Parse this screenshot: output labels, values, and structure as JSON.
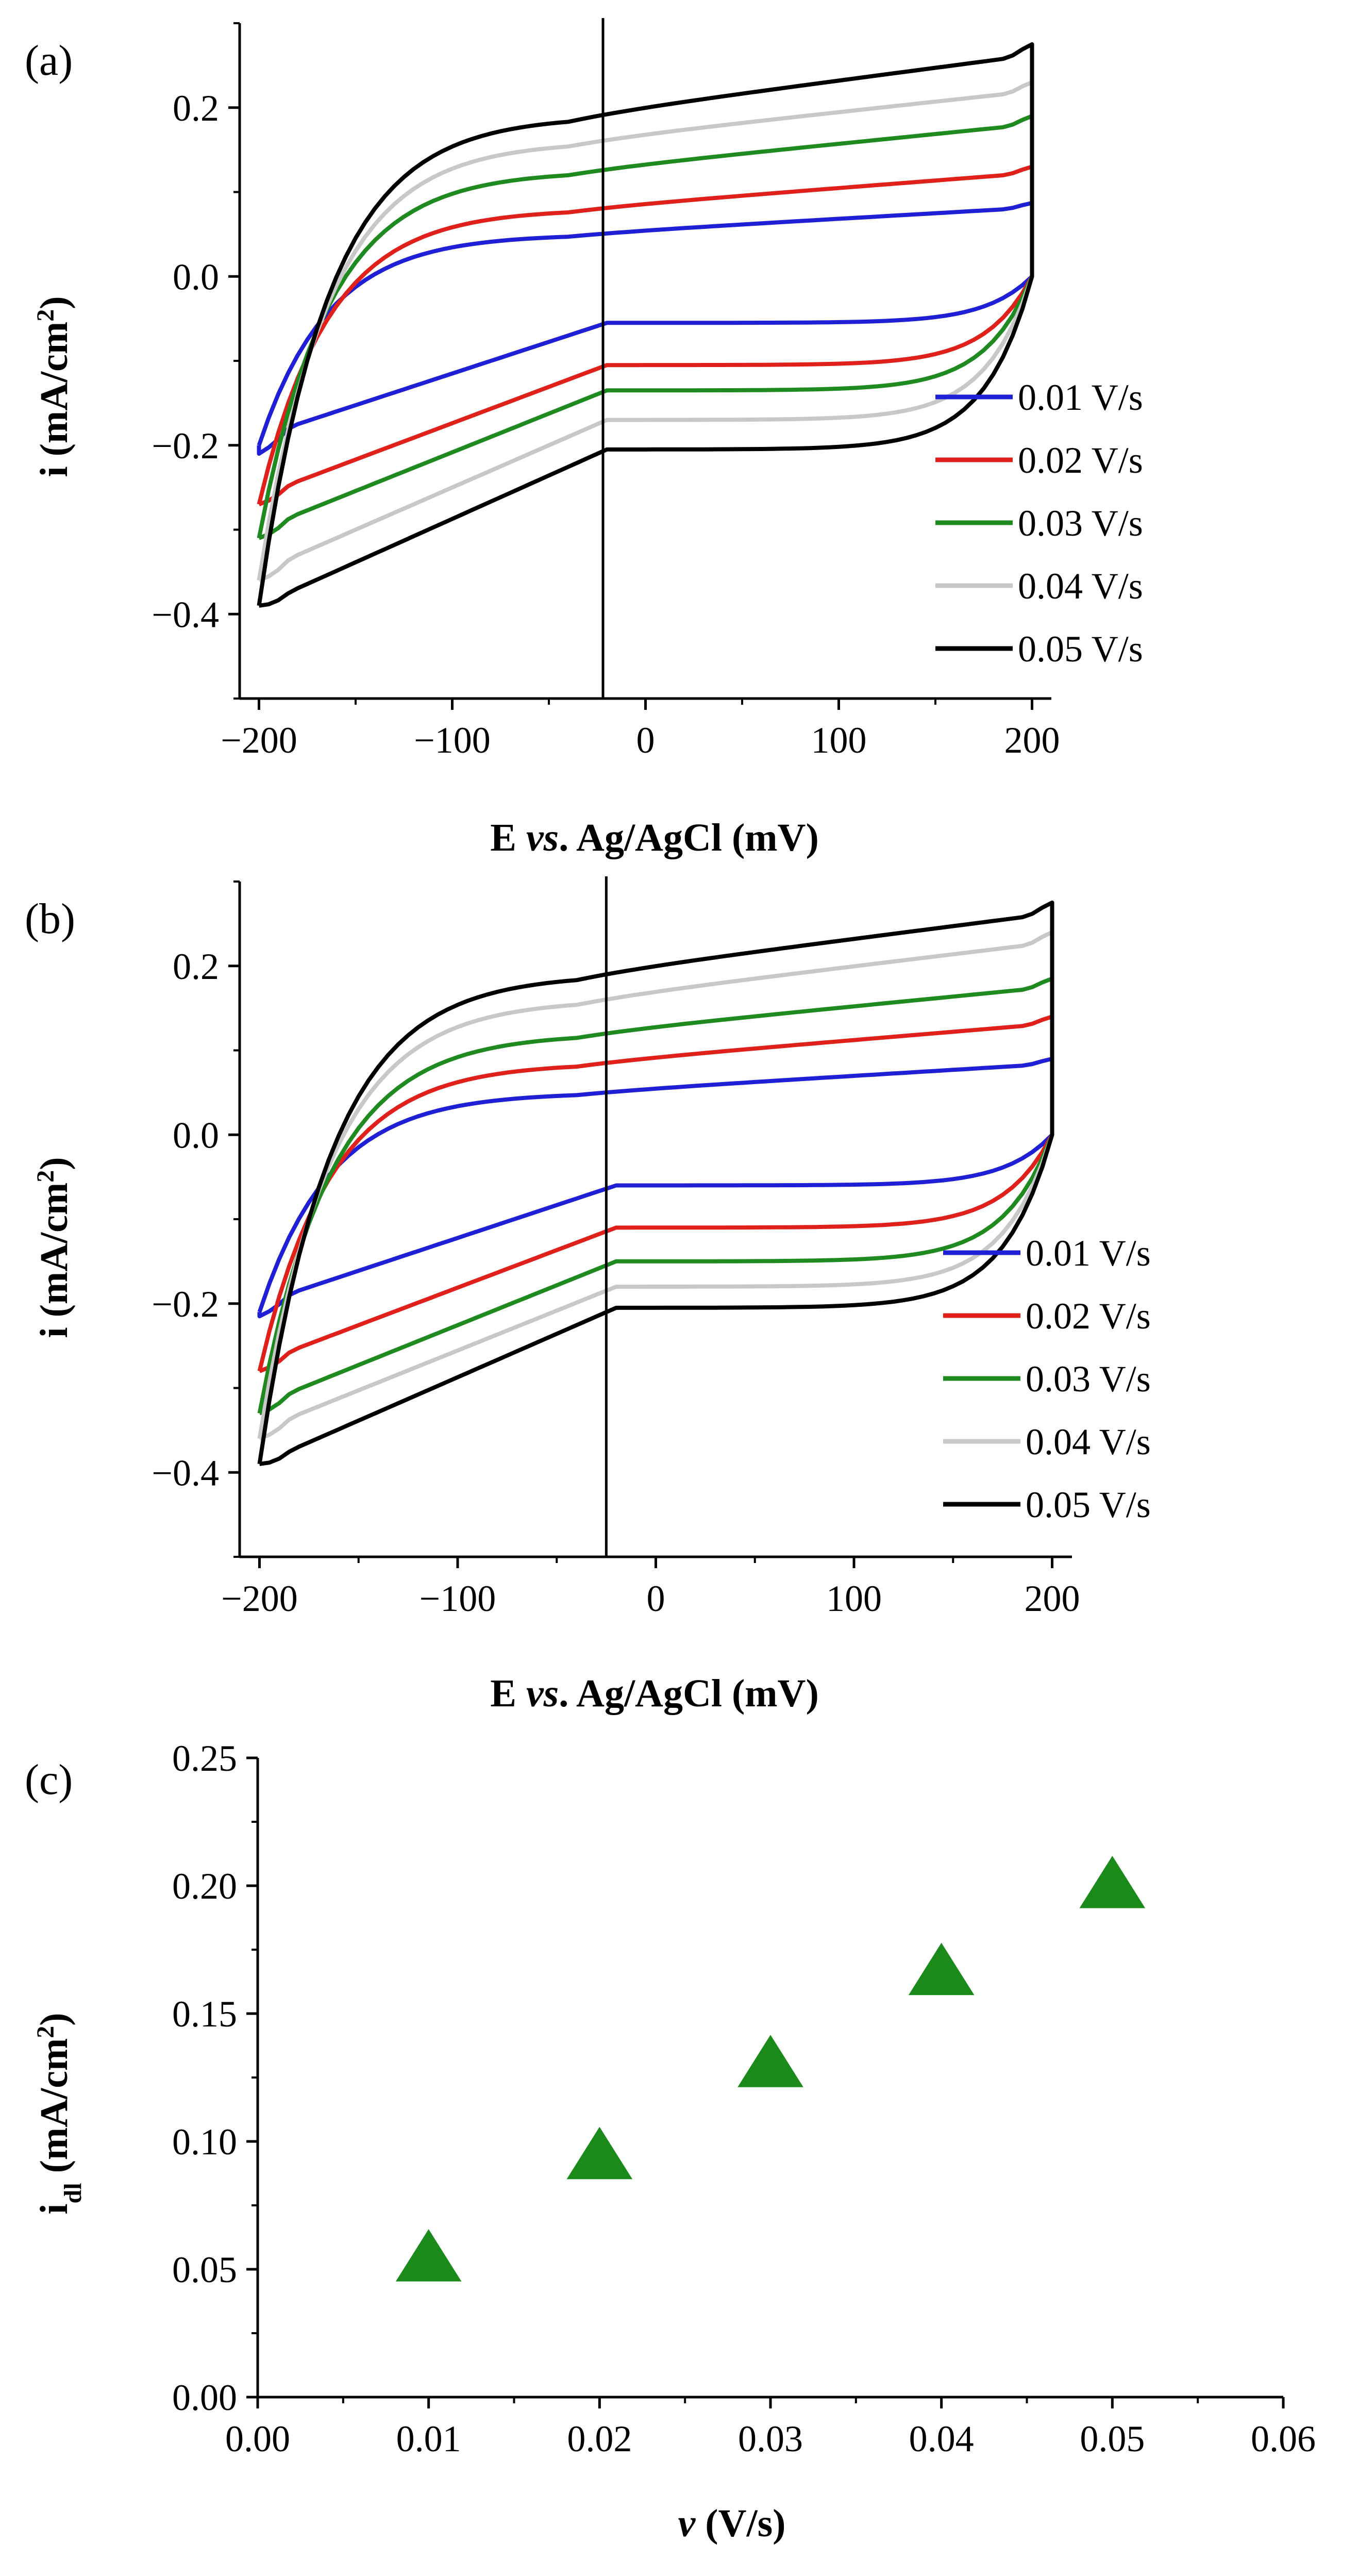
{
  "chart_data": [
    {
      "panel": "(a)",
      "type": "line",
      "xlabel": "E vs. Ag/AgCl (mV)",
      "ylabel": "i (mA/cm2)",
      "xlim": [
        -210,
        210
      ],
      "ylim": [
        -0.5,
        0.3
      ],
      "xticks": [
        -200,
        -100,
        0,
        100,
        200
      ],
      "xtick_labels": [
        "−200",
        "−100",
        "0",
        "100",
        "200"
      ],
      "yticks": [
        -0.4,
        -0.2,
        0.0,
        0.2
      ],
      "ytick_labels": [
        "−0.4",
        "−0.2",
        "0.0",
        "0.2"
      ],
      "vertical_marker_x": -22,
      "legend_position": "bottom-right",
      "series": [
        {
          "name": "0.01 V/s",
          "color": "#1f1fd6",
          "upper_start": -0.2,
          "upper_left": -0.02,
          "upper_mid": 0.05,
          "upper_end": 0.087,
          "lower_left": -0.19,
          "lower_mid": -0.055,
          "lower_end": 0.0,
          "tip_top": 0.087,
          "tip_bottom": -0.21
        },
        {
          "name": "0.02 V/s",
          "color": "#e0201b",
          "upper_start": -0.27,
          "upper_left": -0.02,
          "upper_mid": 0.08,
          "upper_end": 0.13,
          "lower_left": -0.26,
          "lower_mid": -0.105,
          "lower_end": 0.0,
          "tip_top": 0.13,
          "tip_bottom": -0.27
        },
        {
          "name": "0.03 V/s",
          "color": "#1f8a1f",
          "upper_start": -0.31,
          "upper_left": -0.02,
          "upper_mid": 0.125,
          "upper_end": 0.19,
          "lower_left": -0.3,
          "lower_mid": -0.135,
          "lower_end": 0.0,
          "tip_top": 0.19,
          "tip_bottom": -0.31
        },
        {
          "name": "0.04 V/s",
          "color": "#c8c8c8",
          "upper_start": -0.36,
          "upper_left": -0.02,
          "upper_mid": 0.16,
          "upper_end": 0.23,
          "lower_left": -0.35,
          "lower_mid": -0.17,
          "lower_end": 0.0,
          "tip_top": 0.23,
          "tip_bottom": -0.36
        },
        {
          "name": "0.05 V/s",
          "color": "#000000",
          "upper_start": -0.39,
          "upper_left": -0.02,
          "upper_mid": 0.19,
          "upper_end": 0.275,
          "lower_left": -0.39,
          "lower_mid": -0.205,
          "lower_end": 0.0,
          "tip_top": 0.275,
          "tip_bottom": -0.39
        }
      ]
    },
    {
      "panel": "(b)",
      "type": "line",
      "xlabel": "E vs. Ag/AgCl (mV)",
      "ylabel": "i (mA/cm2)",
      "xlim": [
        -210,
        210
      ],
      "ylim": [
        -0.5,
        0.3
      ],
      "xticks": [
        -200,
        -100,
        0,
        100,
        200
      ],
      "xtick_labels": [
        "−200",
        "−100",
        "0",
        "100",
        "200"
      ],
      "yticks": [
        -0.4,
        -0.2,
        0.0,
        0.2
      ],
      "ytick_labels": [
        "−0.4",
        "−0.2",
        "0.0",
        "0.2"
      ],
      "vertical_marker_x": -25,
      "legend_position": "bottom-right",
      "series": [
        {
          "name": "0.01 V/s",
          "color": "#1f1fd6",
          "upper_start": -0.21,
          "upper_left": -0.02,
          "upper_mid": 0.05,
          "upper_end": 0.09,
          "lower_left": -0.2,
          "lower_mid": -0.06,
          "lower_end": 0.0,
          "tip_top": 0.09,
          "tip_bottom": -0.215
        },
        {
          "name": "0.02 V/s",
          "color": "#e0201b",
          "upper_start": -0.28,
          "upper_left": -0.02,
          "upper_mid": 0.085,
          "upper_end": 0.14,
          "lower_left": -0.27,
          "lower_mid": -0.11,
          "lower_end": 0.0,
          "tip_top": 0.14,
          "tip_bottom": -0.28
        },
        {
          "name": "0.03 V/s",
          "color": "#1f8a1f",
          "upper_start": -0.33,
          "upper_left": -0.02,
          "upper_mid": 0.12,
          "upper_end": 0.185,
          "lower_left": -0.32,
          "lower_mid": -0.15,
          "lower_end": 0.0,
          "tip_top": 0.185,
          "tip_bottom": -0.33
        },
        {
          "name": "0.04 V/s",
          "color": "#c8c8c8",
          "upper_start": -0.36,
          "upper_left": -0.02,
          "upper_mid": 0.16,
          "upper_end": 0.24,
          "lower_left": -0.35,
          "lower_mid": -0.18,
          "lower_end": 0.0,
          "tip_top": 0.24,
          "tip_bottom": -0.36
        },
        {
          "name": "0.05 V/s",
          "color": "#000000",
          "upper_start": -0.39,
          "upper_left": -0.02,
          "upper_mid": 0.19,
          "upper_end": 0.275,
          "lower_left": -0.39,
          "lower_mid": -0.205,
          "lower_end": 0.0,
          "tip_top": 0.275,
          "tip_bottom": -0.39
        }
      ]
    },
    {
      "panel": "(c)",
      "type": "scatter",
      "xlabel": "v (V/s)",
      "ylabel": "idl (mA/cm2)",
      "xlim": [
        0.0,
        0.06
      ],
      "ylim": [
        0.0,
        0.25
      ],
      "xticks": [
        0.0,
        0.01,
        0.02,
        0.03,
        0.04,
        0.05,
        0.06
      ],
      "xtick_labels": [
        "0.00",
        "0.01",
        "0.02",
        "0.03",
        "0.04",
        "0.05",
        "0.06"
      ],
      "yticks": [
        0.0,
        0.05,
        0.1,
        0.15,
        0.2,
        0.25
      ],
      "ytick_labels": [
        "0.00",
        "0.05",
        "0.10",
        "0.15",
        "0.20",
        "0.25"
      ],
      "marker": "triangle",
      "marker_color": "#1a8a1a",
      "x": [
        0.01,
        0.02,
        0.03,
        0.04,
        0.05
      ],
      "y": [
        0.054,
        0.094,
        0.13,
        0.166,
        0.2
      ]
    }
  ]
}
